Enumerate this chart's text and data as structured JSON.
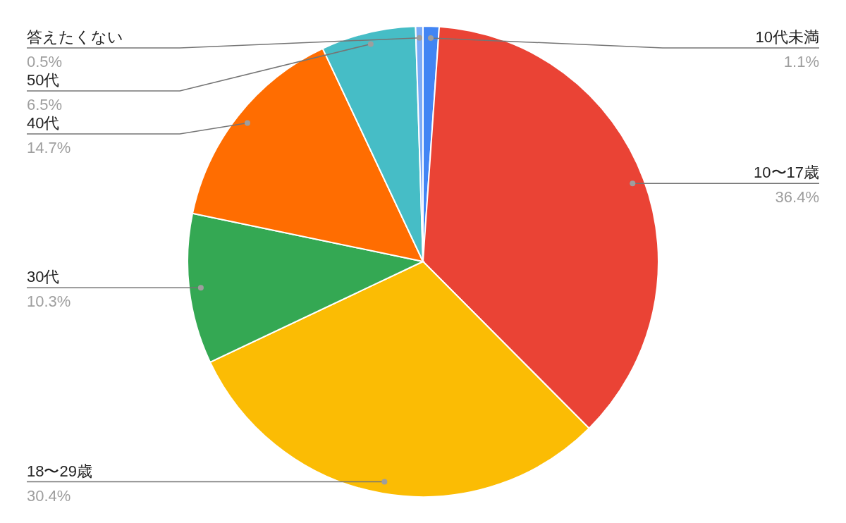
{
  "chart_data": {
    "type": "pie",
    "categories": [
      "10代未満",
      "10〜17歳",
      "18〜29歳",
      "30代",
      "40代",
      "50代",
      "答えたくない"
    ],
    "values": [
      1.1,
      36.4,
      30.4,
      10.3,
      14.7,
      6.5,
      0.5
    ],
    "value_labels": [
      "1.1%",
      "36.4%",
      "30.4%",
      "10.3%",
      "14.7%",
      "6.5%",
      "0.5%"
    ],
    "colors": [
      "#4285f4",
      "#ea4335",
      "#fbbc04",
      "#34a853",
      "#ff6d01",
      "#46bdc6",
      "#7baaf7"
    ]
  }
}
